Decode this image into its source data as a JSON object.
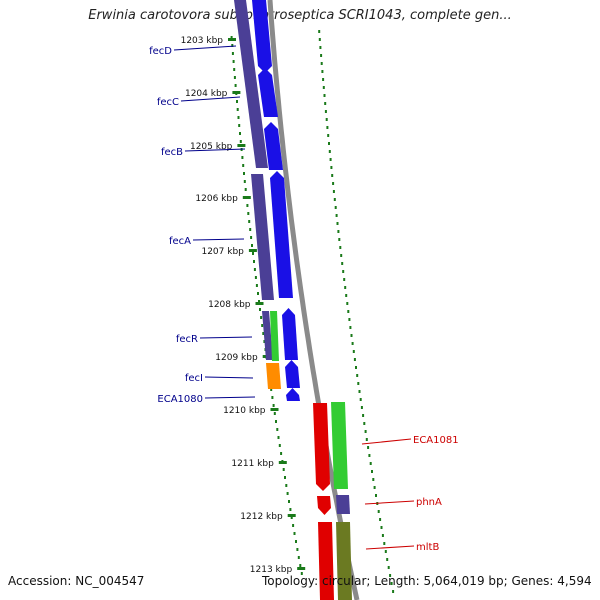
{
  "title": "Erwinia carotovora subsp. atroseptica SCRI1043, complete gen...",
  "footer": {
    "accession": "Accession: NC_004547",
    "summary": "Topology: circular; Length: 5,064,019 bp; Genes: 4,594"
  },
  "colors": {
    "background": "#ffffff",
    "backbone": "#8a8a8a",
    "tick": "#1a7a1a",
    "left_label": "#00008b",
    "right_label": "#cc0000",
    "gene_blue": "#1a10e6",
    "gene_navy": "#4b3f96",
    "gene_green": "#33cc33",
    "gene_orange": "#ff8c00",
    "gene_red": "#e00000",
    "gene_olive": "#6b7a22"
  },
  "scale": {
    "unit": "kbp",
    "ticks": [
      {
        "kbp": 1203,
        "label": "1203 kbp"
      },
      {
        "kbp": 1204,
        "label": "1204 kbp"
      },
      {
        "kbp": 1205,
        "label": "1205 kbp"
      },
      {
        "kbp": 1206,
        "label": "1206 kbp"
      },
      {
        "kbp": 1207,
        "label": "1207 kbp"
      },
      {
        "kbp": 1208,
        "label": "1208 kbp"
      },
      {
        "kbp": 1209,
        "label": "1209 kbp"
      },
      {
        "kbp": 1210,
        "label": "1210 kbp"
      },
      {
        "kbp": 1211,
        "label": "1211 kbp"
      },
      {
        "kbp": 1212,
        "label": "1212 kbp"
      },
      {
        "kbp": 1213,
        "label": "1213 kbp"
      }
    ]
  },
  "genes_left": [
    {
      "label": "fecD"
    },
    {
      "label": "fecC"
    },
    {
      "label": "fecB"
    },
    {
      "label": "fecA"
    },
    {
      "label": "fecR"
    },
    {
      "label": "fecI"
    },
    {
      "label": "ECA1080"
    }
  ],
  "genes_right": [
    {
      "label": "ECA1081"
    },
    {
      "label": "phnA"
    },
    {
      "label": "mltB"
    }
  ]
}
